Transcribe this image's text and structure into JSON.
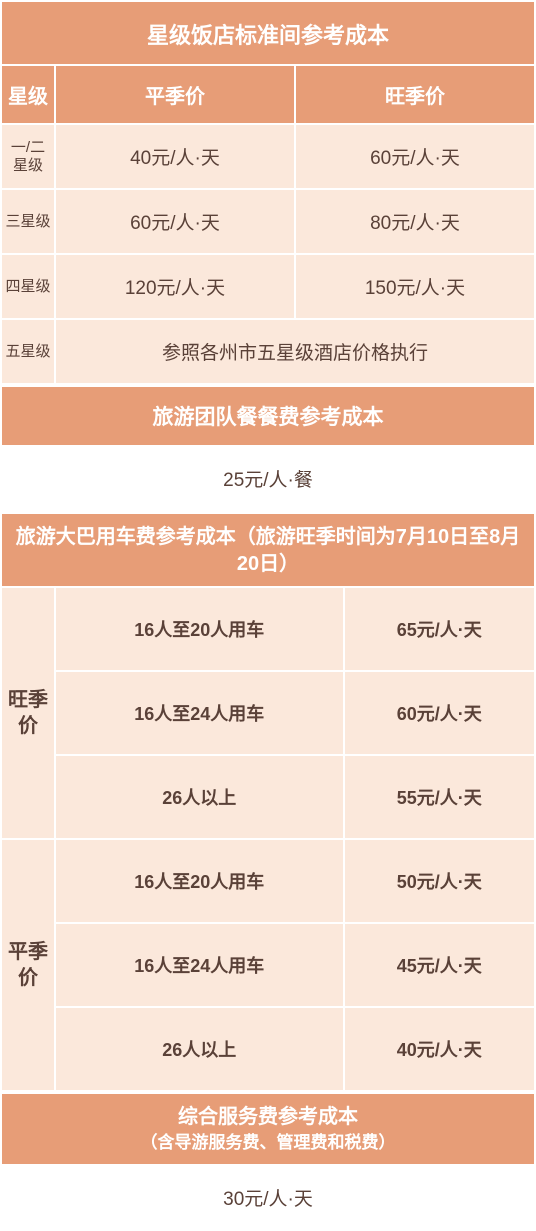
{
  "colors": {
    "header_bg": "#e79d77",
    "header_text": "#ffffff",
    "cell_bg": "#fbe8db",
    "cell_alt_bg": "#ffffff",
    "text": "#5a4138",
    "border": "#ffffff"
  },
  "hotel": {
    "title": "星级饭店标准间参考成本",
    "columns": {
      "star": "星级",
      "off": "平季价",
      "peak": "旺季价"
    },
    "rows": [
      {
        "star": "一/二星级",
        "off": "40元/人·天",
        "peak": "60元/人·天"
      },
      {
        "star": "三星级",
        "off": "60元/人·天",
        "peak": "80元/人·天"
      },
      {
        "star": "四星级",
        "off": "120元/人·天",
        "peak": "150元/人·天"
      }
    ],
    "five_star_label": "五星级",
    "five_star_note": "参照各州市五星级酒店价格执行"
  },
  "meal": {
    "title": "旅游团队餐餐费参考成本",
    "value": "25元/人·餐"
  },
  "bus": {
    "title": "旅游大巴用车费参考成本（旅游旺季时间为7月10日至8月20日）",
    "peak_label": "旺季价",
    "off_label": "平季价",
    "peak_rows": [
      {
        "cap": "16人至20人用车",
        "price": "65元/人·天"
      },
      {
        "cap": "16人至24人用车",
        "price": "60元/人·天"
      },
      {
        "cap": "26人以上",
        "price": "55元/人·天"
      }
    ],
    "off_rows": [
      {
        "cap": "16人至20人用车",
        "price": "50元/人·天"
      },
      {
        "cap": "16人至24人用车",
        "price": "45元/人·天"
      },
      {
        "cap": "26人以上",
        "price": "40元/人·天"
      }
    ]
  },
  "service": {
    "title": "综合服务费参考成本",
    "subtitle": "（含导游服务费、管理费和税费）",
    "value": "30元/人·天"
  }
}
